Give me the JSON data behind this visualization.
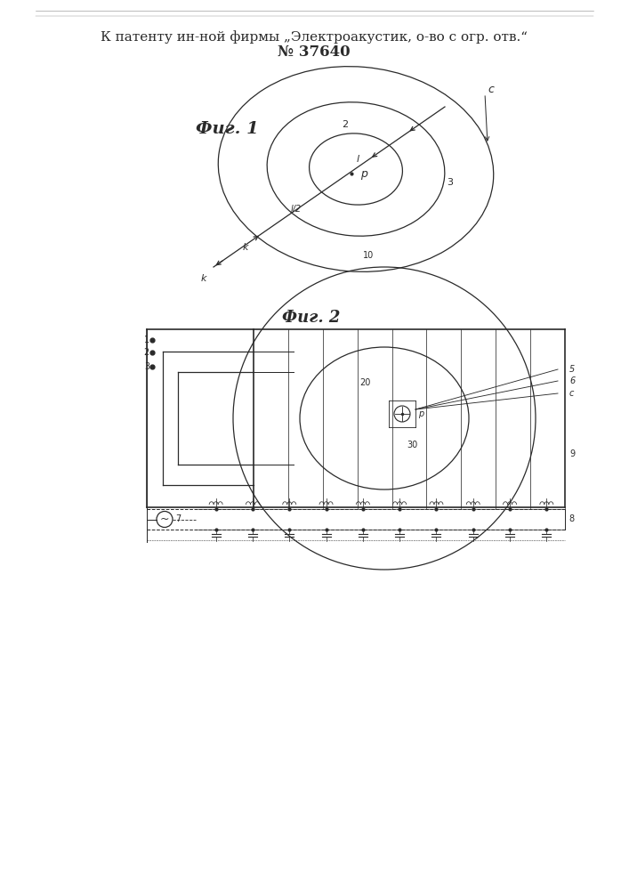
{
  "title_line1": "К патенту ин-ной фирмы „Электроакустик, о-во с огр. отв.“",
  "title_line2": "№ 37640",
  "fig1_label": "Фиг. 1",
  "fig2_label": "Фиг. 2",
  "bg_color": "#ffffff",
  "line_color": "#2a2a2a"
}
